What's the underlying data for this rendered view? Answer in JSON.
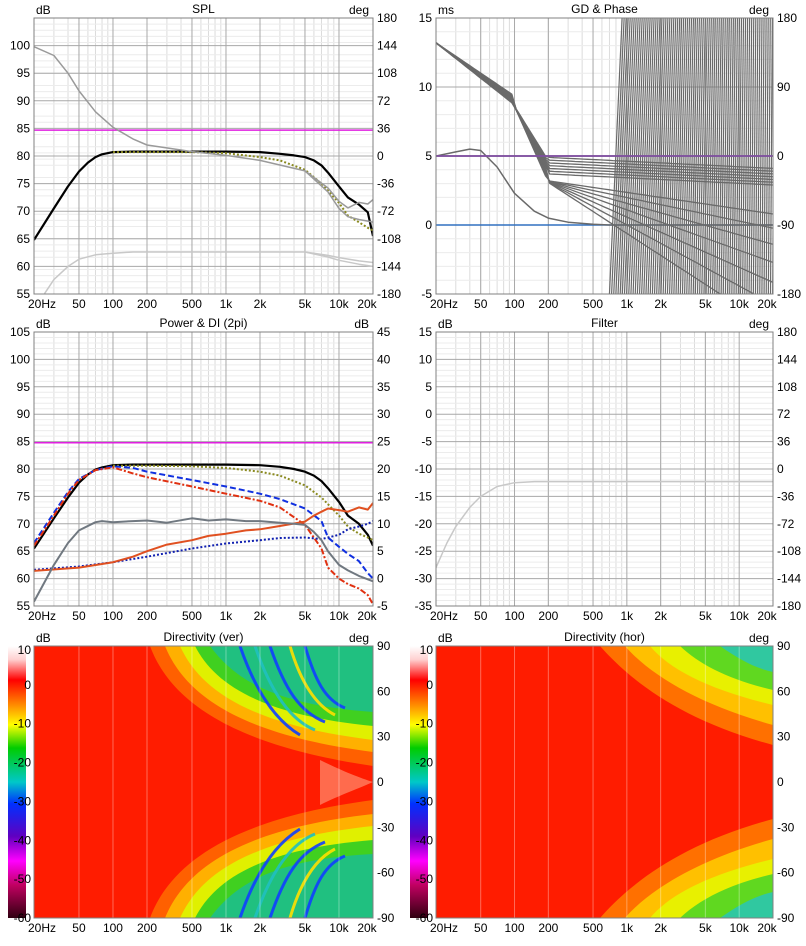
{
  "colors": {
    "grid_major": "#a8a8a8",
    "grid_minor": "#dcdcdc",
    "magenta": "#e020e0",
    "black": "#000000",
    "gray": "#9a9a9a",
    "lightgray": "#c8c8c8",
    "olive": "#8a8a20",
    "red": "#e03010",
    "orange": "#e05020",
    "blue": "#1030e0",
    "darkblue": "#1020b0",
    "slate": "#707880",
    "purple": "#8050a0",
    "steelblue": "#3070c0",
    "phase_gray": "#6a6a6a"
  },
  "x_ticks": [
    "20Hz",
    "50",
    "100",
    "200",
    "500",
    "1k",
    "2k",
    "5k",
    "10k",
    "20k"
  ],
  "x_tick_values": [
    20,
    50,
    100,
    200,
    500,
    1000,
    2000,
    5000,
    10000,
    20000
  ],
  "chart_data": [
    {
      "id": "spl",
      "type": "line",
      "title": "SPL",
      "ylabel": "dB",
      "ylabel2": "deg",
      "xlim": [
        20,
        20000
      ],
      "ylim": [
        55,
        105
      ],
      "y2lim": [
        -180,
        180
      ],
      "yticks": [
        "55",
        "60",
        "65",
        "70",
        "75",
        "80",
        "85",
        "90",
        "95",
        "100"
      ],
      "y2ticks": [
        "-180",
        "-144",
        "-108",
        "-72",
        "-36",
        "0",
        "36",
        "72",
        "108",
        "144",
        "180"
      ],
      "series": [
        {
          "name": "reference",
          "color": "magenta",
          "style": "solid",
          "x": [
            20,
            20000
          ],
          "y": [
            84.7,
            84.7
          ]
        },
        {
          "name": "on-axis",
          "color": "black",
          "style": "solid",
          "width": 2.2,
          "x": [
            20,
            30,
            40,
            50,
            60,
            70,
            80,
            100,
            150,
            200,
            500,
            1000,
            2000,
            3000,
            4000,
            5000,
            6000,
            7000,
            8000,
            10000,
            12000,
            15000,
            18000,
            20000
          ],
          "y": [
            64.8,
            70.5,
            74.5,
            77.2,
            78.8,
            79.8,
            80.3,
            80.7,
            80.8,
            80.8,
            80.8,
            80.8,
            80.7,
            80.4,
            80.1,
            79.8,
            79.2,
            78.3,
            77.0,
            74.5,
            72.5,
            71.2,
            69.8,
            65.5
          ]
        },
        {
          "name": "listening-window",
          "color": "olive",
          "style": "dotted",
          "x": [
            100,
            200,
            500,
            1000,
            2000,
            3000,
            5000,
            7000,
            10000,
            12000,
            15000,
            18000,
            20000
          ],
          "y": [
            80.7,
            80.7,
            80.7,
            80.5,
            79.8,
            79.2,
            77.5,
            75.0,
            71.5,
            69.2,
            68.0,
            67.0,
            66.5
          ]
        },
        {
          "name": "off-axis",
          "color": "gray",
          "style": "solid",
          "x": [
            20,
            30,
            40,
            50,
            70,
            100,
            150,
            200,
            500,
            1000,
            2000,
            5000,
            8000,
            10000,
            12000,
            15000,
            18000,
            20000
          ],
          "y": [
            99.8,
            98.2,
            95.0,
            91.8,
            88.0,
            85.2,
            83.1,
            82.0,
            80.8,
            80.1,
            79.2,
            77.3,
            73.5,
            70.5,
            69.0,
            68.5,
            68.2,
            68.0
          ]
        },
        {
          "name": "off-axis-2",
          "color": "gray",
          "style": "solid",
          "x": [
            5000,
            8000,
            10000,
            12000,
            15000,
            18000,
            20000
          ],
          "y": [
            77.3,
            74.2,
            71.8,
            70.6,
            71.6,
            71.3,
            72.1
          ]
        },
        {
          "name": "phase",
          "color": "lightgray",
          "style": "solid",
          "x": [
            20,
            25,
            30,
            40,
            50,
            70,
            100,
            150,
            200,
            500,
            1000,
            2000,
            5000,
            8000,
            10000,
            15000,
            20000
          ],
          "y": [
            50.8,
            55.2,
            57.6,
            60.0,
            61.3,
            62.1,
            62.4,
            62.6,
            62.6,
            62.6,
            62.6,
            62.6,
            62.6,
            61.7,
            61.1,
            60.4,
            60.0
          ]
        },
        {
          "name": "phase-2",
          "color": "lightgray",
          "style": "solid",
          "x": [
            5000,
            8000,
            10000,
            15000,
            20000
          ],
          "y": [
            62.6,
            62.0,
            61.6,
            61.0,
            60.7
          ]
        }
      ]
    },
    {
      "id": "gd_phase",
      "type": "line",
      "title": "GD & Phase",
      "ylabel": "ms",
      "ylabel2": "deg",
      "xlim": [
        20,
        20000
      ],
      "ylim": [
        -5,
        15
      ],
      "y2lim": [
        -180,
        180
      ],
      "yticks": [
        "-5",
        "0",
        "5",
        "10",
        "15"
      ],
      "y2ticks": [
        "-180",
        "-90",
        "0",
        "90",
        "180"
      ],
      "series": [
        {
          "name": "group-delay",
          "color": "purple",
          "style": "solid",
          "x": [
            20,
            20000
          ],
          "y": [
            5,
            5
          ]
        },
        {
          "name": "zero",
          "color": "steelblue",
          "style": "solid",
          "x": [
            20,
            20000
          ],
          "y": [
            0,
            0
          ]
        },
        {
          "name": "gd-curve",
          "color": "phase_gray",
          "style": "solid",
          "x": [
            20,
            30,
            40,
            50,
            70,
            100,
            150,
            200,
            300,
            500,
            700,
            1000,
            1500,
            2000,
            5000,
            10000,
            20000
          ],
          "y": [
            5.0,
            5.3,
            5.5,
            5.4,
            4.2,
            2.3,
            1.0,
            0.5,
            0.2,
            0.05,
            0.0,
            0.0,
            0.0,
            0.0,
            0.0,
            0.0,
            0.0
          ]
        }
      ]
    },
    {
      "id": "power_di",
      "type": "line",
      "title": "Power & DI (2pi)",
      "ylabel": "dB",
      "ylabel2": "dB",
      "xlim": [
        20,
        20000
      ],
      "ylim": [
        55,
        105
      ],
      "y2lim": [
        -5,
        45
      ],
      "yticks": [
        "55",
        "60",
        "65",
        "70",
        "75",
        "80",
        "85",
        "90",
        "95",
        "100",
        "105"
      ],
      "y2ticks": [
        "-5",
        "0",
        "5",
        "10",
        "15",
        "20",
        "25",
        "30",
        "35",
        "40",
        "45"
      ],
      "series": [
        {
          "name": "reference",
          "color": "magenta",
          "style": "solid",
          "x": [
            20,
            20000
          ],
          "y": [
            84.8,
            84.8
          ]
        },
        {
          "name": "on-axis",
          "color": "black",
          "style": "solid",
          "width": 2.2,
          "x": [
            20,
            30,
            40,
            50,
            60,
            70,
            80,
            100,
            150,
            200,
            500,
            1000,
            2000,
            3000,
            4000,
            5000,
            6000,
            7000,
            8000,
            10000,
            12000,
            15000,
            18000,
            20000
          ],
          "y": [
            65.5,
            71.0,
            74.8,
            77.5,
            79.0,
            79.9,
            80.3,
            80.7,
            80.8,
            80.8,
            80.8,
            80.8,
            80.7,
            80.4,
            80.0,
            79.5,
            78.8,
            77.8,
            76.5,
            74.0,
            71.5,
            70.0,
            68.0,
            66.0
          ]
        },
        {
          "name": "listening-window",
          "color": "olive",
          "style": "dotted",
          "x": [
            100,
            200,
            500,
            1000,
            2000,
            3000,
            5000,
            7000,
            10000,
            12000,
            15000,
            18000,
            20000
          ],
          "y": [
            80.6,
            80.6,
            80.5,
            80.2,
            79.5,
            78.8,
            77.0,
            74.8,
            71.5,
            69.5,
            68.2,
            67.5,
            67.0
          ]
        },
        {
          "name": "early-reflections",
          "color": "blue",
          "style": "dashed",
          "x": [
            20,
            30,
            40,
            50,
            70,
            100,
            150,
            200,
            500,
            1000,
            2000,
            3000,
            5000,
            7000,
            8000,
            10000,
            12000,
            15000,
            18000,
            20000
          ],
          "y": [
            66.5,
            72.0,
            75.8,
            78.2,
            79.8,
            80.5,
            80.2,
            79.5,
            78.0,
            76.8,
            75.5,
            74.5,
            72.8,
            70.5,
            67.5,
            65.8,
            64.5,
            63.2,
            61.0,
            60.0
          ]
        },
        {
          "name": "sound-power",
          "color": "red",
          "style": "dashdot",
          "x": [
            20,
            30,
            40,
            50,
            70,
            100,
            150,
            200,
            500,
            1000,
            2000,
            3000,
            5000,
            7000,
            8000,
            10000,
            12000,
            15000,
            18000,
            20000
          ],
          "y": [
            66.0,
            71.5,
            75.5,
            78.0,
            79.8,
            80.3,
            79.2,
            78.5,
            76.8,
            75.5,
            74.2,
            73.0,
            69.8,
            65.5,
            62.0,
            60.0,
            59.0,
            58.2,
            57.0,
            55.3
          ]
        },
        {
          "name": "di-er",
          "color": "darkblue",
          "style": "dotted",
          "x": [
            20,
            50,
            100,
            200,
            500,
            1000,
            2000,
            3000,
            5000,
            7000,
            8000,
            10000,
            12000,
            15000,
            18000,
            20000
          ],
          "y": [
            61.6,
            62.2,
            63.0,
            64.0,
            65.5,
            66.4,
            67.0,
            67.4,
            67.5,
            67.2,
            67.5,
            68.0,
            69.0,
            69.5,
            70.0,
            70.5
          ]
        },
        {
          "name": "di-sp",
          "color": "orange",
          "style": "solid",
          "width": 2,
          "x": [
            20,
            50,
            100,
            150,
            200,
            300,
            500,
            700,
            1000,
            1500,
            2000,
            3000,
            5000,
            6000,
            7000,
            8000,
            10000,
            12000,
            15000,
            18000,
            20000
          ],
          "y": [
            61.4,
            62.0,
            63.0,
            64.0,
            65.0,
            66.2,
            67.0,
            67.8,
            68.2,
            68.8,
            69.0,
            69.6,
            70.4,
            71.5,
            72.2,
            72.8,
            72.5,
            72.2,
            73.0,
            72.6,
            73.8
          ]
        },
        {
          "name": "di-gray",
          "color": "slate",
          "style": "solid",
          "width": 2,
          "x": [
            20,
            30,
            40,
            50,
            70,
            80,
            100,
            150,
            200,
            300,
            500,
            700,
            1000,
            1500,
            2000,
            3000,
            4000,
            5000,
            6000,
            7000,
            8000,
            10000,
            12000,
            15000,
            20000
          ],
          "y": [
            55.8,
            62.5,
            66.5,
            68.8,
            70.3,
            70.5,
            70.3,
            70.5,
            70.6,
            70.2,
            71.0,
            70.6,
            70.8,
            70.5,
            70.5,
            70.2,
            70.0,
            69.8,
            68.5,
            67.0,
            65.0,
            62.5,
            61.5,
            60.5,
            59.5
          ]
        }
      ]
    },
    {
      "id": "filter",
      "type": "line",
      "title": "Filter",
      "ylabel": "dB",
      "ylabel2": "deg",
      "xlim": [
        20,
        20000
      ],
      "ylim": [
        -35,
        15
      ],
      "y2lim": [
        -180,
        180
      ],
      "yticks": [
        "-35",
        "-30",
        "-25",
        "-20",
        "-15",
        "-10",
        "-5",
        "0",
        "5",
        "10",
        "15"
      ],
      "y2ticks": [
        "-180",
        "-144",
        "-108",
        "-72",
        "-36",
        "0",
        "36",
        "72",
        "108",
        "144",
        "180"
      ],
      "series": [
        {
          "name": "filter-response",
          "color": "lightgray",
          "style": "solid",
          "x": [
            20,
            25,
            30,
            40,
            50,
            70,
            100,
            150,
            200,
            500,
            1000,
            2000,
            5000,
            10000,
            20000
          ],
          "y": [
            -28.0,
            -23.5,
            -20.5,
            -17.0,
            -15.0,
            -13.2,
            -12.5,
            -12.3,
            -12.3,
            -12.3,
            -12.3,
            -12.3,
            -12.3,
            -12.3,
            -12.3
          ]
        }
      ]
    },
    {
      "id": "dir_ver",
      "type": "heatmap",
      "title": "Directivity (ver)",
      "ylabel": "dB",
      "ylabel2": "deg",
      "xlim": [
        20,
        20000
      ],
      "ylim": [
        -90,
        90
      ],
      "colorbar_ticks": [
        "10",
        "0",
        "-10",
        "-20",
        "-30",
        "-40",
        "-50",
        "-60"
      ],
      "y2ticks": [
        "-90",
        "-60",
        "-30",
        "0",
        "30",
        "60",
        "90"
      ]
    },
    {
      "id": "dir_hor",
      "type": "heatmap",
      "title": "Directivity (hor)",
      "ylabel": "dB",
      "ylabel2": "deg",
      "xlim": [
        20,
        20000
      ],
      "ylim": [
        -90,
        90
      ],
      "colorbar_ticks": [
        "10",
        "0",
        "-10",
        "-20",
        "-30",
        "-40",
        "-50",
        "-60"
      ],
      "y2ticks": [
        "-90",
        "-60",
        "-30",
        "0",
        "30",
        "60",
        "90"
      ]
    }
  ]
}
